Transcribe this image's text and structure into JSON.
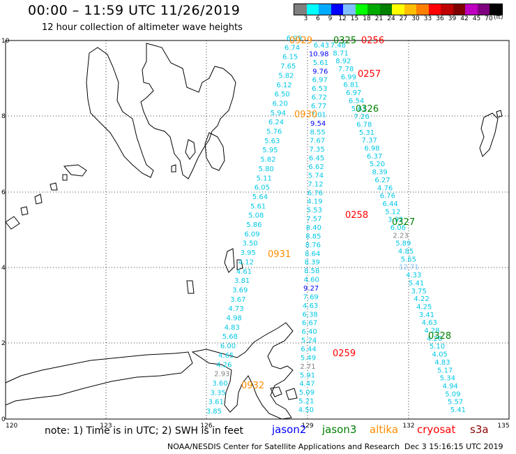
{
  "title": "00:00 – 11:59 UTC 11/26/2019",
  "subtitle": "12 hour collection of altimeter wave heights",
  "colorbar": {
    "colors": [
      "#7f7f7f",
      "#00ffff",
      "#00aaff",
      "#0000ff",
      "#7fbfff",
      "#00ff00",
      "#00aa00",
      "#007f00",
      "#ffff00",
      "#ffbf00",
      "#ff7f00",
      "#ff0000",
      "#bf0000",
      "#7f0000",
      "#bf00bf",
      "#7f007f",
      "#000000"
    ],
    "labels": [
      "3",
      "6",
      "9",
      "12",
      "15",
      "18",
      "21",
      "24",
      "27",
      "30",
      "33",
      "36",
      "39",
      "42",
      "45",
      "70"
    ],
    "unit": "(ft)"
  },
  "axes": {
    "x_ticks": [
      "120",
      "123",
      "126",
      "129",
      "132",
      "135"
    ],
    "y_ticks": [
      "0",
      "2",
      "4",
      "6",
      "8",
      "10"
    ]
  },
  "passes": [
    {
      "label": "0929",
      "color": "#ff8c00"
    },
    {
      "label": "0325",
      "color": "#008000"
    },
    {
      "label": "0256",
      "color": "#ff0000"
    },
    {
      "label": "0257",
      "color": "#ff0000"
    },
    {
      "label": "0326",
      "color": "#008000"
    },
    {
      "label": "0930",
      "color": "#ff8c00"
    },
    {
      "label": "0258",
      "color": "#ff0000"
    },
    {
      "label": "0327",
      "color": "#008000"
    },
    {
      "label": "0931",
      "color": "#ff8c00"
    },
    {
      "label": "0328",
      "color": "#008000"
    },
    {
      "label": "0259",
      "color": "#ff0000"
    },
    {
      "label": "0932",
      "color": "#ff8c00"
    }
  ],
  "tracks": {
    "a": [
      "6.99",
      "6.74",
      "6.15",
      "7.65",
      "5.82",
      "6.12",
      "6.50",
      "6.20",
      "5.94",
      "6.24",
      "5.76",
      "5.63",
      "5.95",
      "5.82",
      "5.80",
      "5.11",
      "6.05",
      "5.64",
      "5.61",
      "5.08",
      "5.86",
      "6.09",
      "3.50",
      "3.95",
      "4.12",
      "4.61",
      "3.81",
      "3.69",
      "3.67",
      "4.73",
      "4.98",
      "4.83",
      "5.68",
      "6.00",
      "4.65",
      "4.26",
      "2.93",
      "3.60",
      "3.35",
      "3.61",
      "3.85"
    ],
    "b": [
      "6.43",
      "10.98",
      "5.61",
      "9.76",
      "6.97",
      "6.53",
      "6.72",
      "6.77",
      "7.01",
      "9.54",
      "8.55",
      "7.67",
      "7.35",
      "6.45",
      "6.62",
      "5.74",
      "7.12",
      "6.76",
      "4.19",
      "5.53",
      "7.57",
      "8.40",
      "8.85",
      "8.76",
      "8.64",
      "8.39",
      "8.58",
      "4.60",
      "9.27",
      "7.69",
      "4.63",
      "6.38",
      "6.67",
      "6.40",
      "5.24",
      "6.44",
      "5.49",
      "2.71",
      "5.91",
      "4.47",
      "5.09",
      "5.21",
      "4.50"
    ],
    "c": [
      "7.48",
      "8.71",
      "8.92",
      "7.78",
      "6.99",
      "6.81",
      "6.97",
      "6.54",
      "5.61",
      "7.26",
      "6.78",
      "5.31",
      "7.37",
      "6.98",
      "6.37",
      "5.20",
      "8.39",
      "6.27",
      "4.76",
      "6.76",
      "6.44",
      "5.12",
      "3.92",
      "6.06",
      "2.23",
      "5.89",
      "4.85",
      "5.65",
      "12.71",
      "4.33",
      "5.41",
      "3.75",
      "4.22",
      "4.25",
      "3.41",
      "4.63",
      "4.28",
      "4.26",
      "5.10",
      "4.05",
      "4.83",
      "5.17",
      "5.34",
      "4.94",
      "5.09",
      "5.57",
      "5.41"
    ]
  },
  "legend": {
    "note": "note:  1) Time is in UTC;  2) SWH is in feet",
    "sats": [
      {
        "name": "jason2",
        "color": "#0000ff"
      },
      {
        "name": "jason3",
        "color": "#008000"
      },
      {
        "name": "altika",
        "color": "#ff8c00"
      },
      {
        "name": "cryosat",
        "color": "#ff0000"
      },
      {
        "name": "s3a",
        "color": "#8b0000"
      }
    ]
  },
  "credit": "NOAA/NESDIS Center for Satellite Applications and Research",
  "credit_date": "Dec  3 15:16:15 UTC 2019"
}
